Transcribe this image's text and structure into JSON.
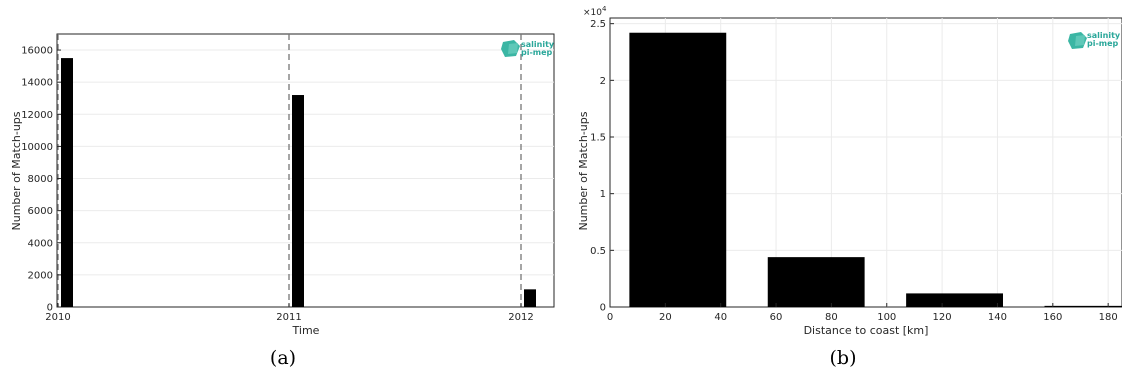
{
  "chart_data": [
    {
      "type": "bar",
      "xlabel": "Time",
      "ylabel": "Number of Match-ups",
      "caption": "(a)",
      "x_tick_labels": [
        "2010",
        "2011",
        "2012"
      ],
      "y_ticks": [
        0,
        2000,
        4000,
        6000,
        8000,
        10000,
        12000,
        14000,
        16000
      ],
      "ylim": [
        0,
        17000
      ],
      "categories": [
        "2010",
        "2011",
        "2012"
      ],
      "values": [
        15500,
        13200,
        1100
      ],
      "year_markers": [
        "2010",
        "2011",
        "2012"
      ],
      "grid": true,
      "bar_color": "#000000",
      "logo": {
        "line1": "salinity",
        "line2": "pi-mep",
        "color": "#2aa79a"
      }
    },
    {
      "type": "bar",
      "xlabel": "Distance to coast [km]",
      "ylabel": "Number of Match-ups",
      "caption": "(b)",
      "y_multiplier": "×10",
      "y_exponent": "4",
      "x_ticks": [
        0,
        20,
        40,
        60,
        80,
        100,
        120,
        140,
        160,
        180
      ],
      "y_ticks": [
        0,
        0.5,
        1,
        1.5,
        2,
        2.5
      ],
      "xlim": [
        0,
        185
      ],
      "ylim": [
        0,
        2.55
      ],
      "bins": [
        {
          "start": 7,
          "end": 42,
          "value": 2.42
        },
        {
          "start": 57,
          "end": 92,
          "value": 0.44
        },
        {
          "start": 107,
          "end": 142,
          "value": 0.12
        },
        {
          "start": 157,
          "end": 185,
          "value": 0.01
        }
      ],
      "grid": true,
      "bar_color": "#000000",
      "logo": {
        "line1": "salinity",
        "line2": "pi-mep",
        "color": "#2aa79a"
      }
    }
  ]
}
